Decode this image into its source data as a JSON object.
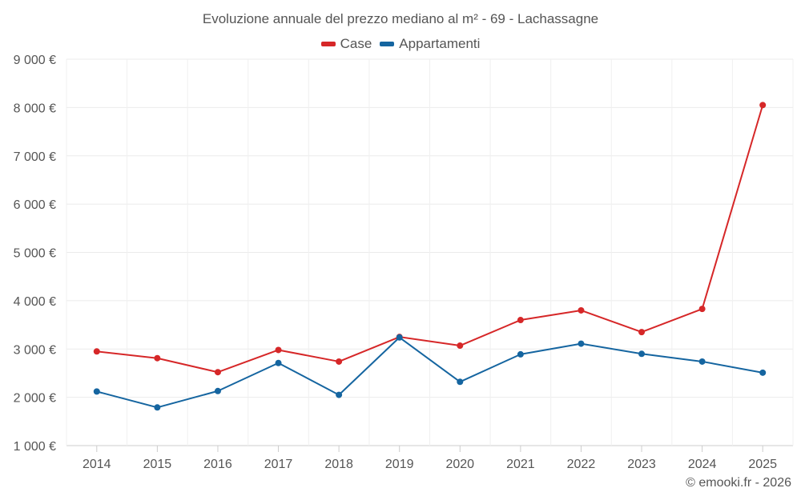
{
  "chart_data": {
    "type": "line",
    "title": "Evoluzione annuale del prezzo mediano al m² - 69 - Lachassagne",
    "xlabel": "",
    "ylabel": "",
    "categories": [
      "2014",
      "2015",
      "2016",
      "2017",
      "2018",
      "2019",
      "2020",
      "2021",
      "2022",
      "2023",
      "2024",
      "2025"
    ],
    "ylim": [
      1000,
      9000
    ],
    "yticks": [
      1000,
      2000,
      3000,
      4000,
      5000,
      6000,
      7000,
      8000,
      9000
    ],
    "ytick_labels": [
      "1 000 €",
      "2 000 €",
      "3 000 €",
      "4 000 €",
      "5 000 €",
      "6 000 €",
      "7 000 €",
      "8 000 €",
      "9 000 €"
    ],
    "grid": true,
    "legend_position": "top-center",
    "series": [
      {
        "name": "Case",
        "color": "#d62728",
        "values": [
          2950,
          2810,
          2520,
          2980,
          2740,
          3250,
          3070,
          3600,
          3800,
          3350,
          3830,
          8050
        ]
      },
      {
        "name": "Appartamenti",
        "color": "#1565a0",
        "values": [
          2120,
          1790,
          2130,
          2710,
          2050,
          3240,
          2320,
          2890,
          3110,
          2900,
          2740,
          2510
        ]
      }
    ]
  },
  "credit": "© emooki.fr - 2026"
}
